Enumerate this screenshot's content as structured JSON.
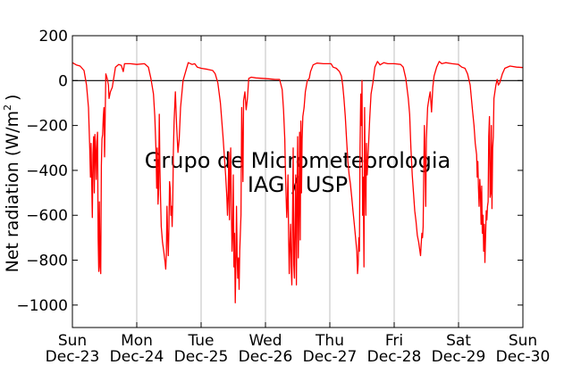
{
  "chart_data": {
    "type": "line",
    "ylabel": "Net radiation (W/m",
    "ylabel_sup": "2",
    "ylabel_close": ")",
    "ylim": [
      -1100,
      200
    ],
    "yticks": [
      200,
      0,
      -200,
      -400,
      -600,
      -800,
      -1000
    ],
    "ytick_labels": [
      "200",
      "0",
      "−200",
      "−400",
      "−600",
      "−800",
      "−1000"
    ],
    "xlim": [
      0,
      7
    ],
    "xticks": [
      {
        "x": 0,
        "day": "Sun",
        "date": "Dec-23"
      },
      {
        "x": 1,
        "day": "Mon",
        "date": "Dec-24"
      },
      {
        "x": 2,
        "day": "Tue",
        "date": "Dec-25"
      },
      {
        "x": 3,
        "day": "Wed",
        "date": "Dec-26"
      },
      {
        "x": 4,
        "day": "Thu",
        "date": "Dec-27"
      },
      {
        "x": 5,
        "day": "Fri",
        "date": "Dec-28"
      },
      {
        "x": 6,
        "day": "Sat",
        "date": "Dec-29"
      },
      {
        "x": 7,
        "day": "Sun",
        "date": "Dec-30"
      }
    ],
    "grid": "vertical",
    "reference_line": 0,
    "watermark": [
      "Grupo de Micrometeorologia",
      "IAG / USP"
    ],
    "colors": {
      "series": "#ff0000",
      "grid": "#b0b0b0",
      "watermark": "#c8c8c8"
    },
    "series": [
      {
        "values": [
          [
            0.0,
            80
          ],
          [
            0.06,
            70
          ],
          [
            0.12,
            65
          ],
          [
            0.18,
            45
          ],
          [
            0.22,
            -20
          ],
          [
            0.25,
            -120
          ],
          [
            0.27,
            -300
          ],
          [
            0.28,
            -430
          ],
          [
            0.29,
            -280
          ],
          [
            0.3,
            -450
          ],
          [
            0.31,
            -610
          ],
          [
            0.32,
            -330
          ],
          [
            0.33,
            -250
          ],
          [
            0.34,
            -500
          ],
          [
            0.35,
            -240
          ],
          [
            0.36,
            -310
          ],
          [
            0.37,
            -440
          ],
          [
            0.38,
            -270
          ],
          [
            0.39,
            -230
          ],
          [
            0.4,
            -700
          ],
          [
            0.41,
            -850
          ],
          [
            0.42,
            -540
          ],
          [
            0.43,
            -830
          ],
          [
            0.44,
            -860
          ],
          [
            0.45,
            -380
          ],
          [
            0.46,
            -260
          ],
          [
            0.47,
            -240
          ],
          [
            0.48,
            -160
          ],
          [
            0.49,
            -120
          ],
          [
            0.5,
            -340
          ],
          [
            0.52,
            30
          ],
          [
            0.54,
            10
          ],
          [
            0.56,
            -20
          ],
          [
            0.57,
            -80
          ],
          [
            0.59,
            -50
          ],
          [
            0.62,
            -30
          ],
          [
            0.67,
            60
          ],
          [
            0.72,
            72
          ],
          [
            0.76,
            68
          ],
          [
            0.79,
            40
          ],
          [
            0.81,
            75
          ],
          [
            0.9,
            75
          ],
          [
            1.0,
            72
          ],
          [
            1.12,
            75
          ],
          [
            1.18,
            60
          ],
          [
            1.22,
            10
          ],
          [
            1.26,
            -60
          ],
          [
            1.28,
            -160
          ],
          [
            1.3,
            -320
          ],
          [
            1.31,
            -480
          ],
          [
            1.32,
            -300
          ],
          [
            1.33,
            -550
          ],
          [
            1.34,
            -480
          ],
          [
            1.35,
            -150
          ],
          [
            1.36,
            -390
          ],
          [
            1.37,
            -520
          ],
          [
            1.38,
            -650
          ],
          [
            1.4,
            -720
          ],
          [
            1.42,
            -760
          ],
          [
            1.44,
            -810
          ],
          [
            1.45,
            -840
          ],
          [
            1.46,
            -780
          ],
          [
            1.47,
            -560
          ],
          [
            1.48,
            -700
          ],
          [
            1.49,
            -780
          ],
          [
            1.5,
            -650
          ],
          [
            1.51,
            -450
          ],
          [
            1.52,
            -480
          ],
          [
            1.53,
            -600
          ],
          [
            1.54,
            -560
          ],
          [
            1.55,
            -650
          ],
          [
            1.56,
            -530
          ],
          [
            1.57,
            -310
          ],
          [
            1.58,
            -180
          ],
          [
            1.6,
            -50
          ],
          [
            1.62,
            -200
          ],
          [
            1.64,
            -320
          ],
          [
            1.66,
            -260
          ],
          [
            1.68,
            -120
          ],
          [
            1.72,
            0
          ],
          [
            1.76,
            40
          ],
          [
            1.8,
            80
          ],
          [
            1.86,
            72
          ],
          [
            1.9,
            75
          ],
          [
            1.94,
            60
          ],
          [
            2.0,
            55
          ],
          [
            2.1,
            50
          ],
          [
            2.18,
            45
          ],
          [
            2.22,
            30
          ],
          [
            2.26,
            -10
          ],
          [
            2.3,
            -100
          ],
          [
            2.34,
            -250
          ],
          [
            2.38,
            -420
          ],
          [
            2.4,
            -520
          ],
          [
            2.41,
            -600
          ],
          [
            2.42,
            -520
          ],
          [
            2.43,
            -320
          ],
          [
            2.44,
            -620
          ],
          [
            2.45,
            -400
          ],
          [
            2.46,
            -300
          ],
          [
            2.47,
            -560
          ],
          [
            2.48,
            -760
          ],
          [
            2.49,
            -680
          ],
          [
            2.5,
            -420
          ],
          [
            2.51,
            -830
          ],
          [
            2.52,
            -680
          ],
          [
            2.53,
            -990
          ],
          [
            2.54,
            -820
          ],
          [
            2.55,
            -560
          ],
          [
            2.56,
            -780
          ],
          [
            2.57,
            -880
          ],
          [
            2.58,
            -790
          ],
          [
            2.59,
            -930
          ],
          [
            2.6,
            -760
          ],
          [
            2.62,
            -600
          ],
          [
            2.63,
            -120
          ],
          [
            2.65,
            -450
          ],
          [
            2.66,
            -90
          ],
          [
            2.68,
            -50
          ],
          [
            2.7,
            -130
          ],
          [
            2.72,
            -80
          ],
          [
            2.74,
            10
          ],
          [
            2.78,
            15
          ],
          [
            2.85,
            12
          ],
          [
            2.95,
            10
          ],
          [
            3.05,
            8
          ],
          [
            3.15,
            5
          ],
          [
            3.22,
            5
          ],
          [
            3.26,
            -40
          ],
          [
            3.28,
            -130
          ],
          [
            3.3,
            -260
          ],
          [
            3.31,
            -400
          ],
          [
            3.32,
            -500
          ],
          [
            3.33,
            -610
          ],
          [
            3.34,
            -540
          ],
          [
            3.35,
            -420
          ],
          [
            3.36,
            -700
          ],
          [
            3.37,
            -860
          ],
          [
            3.38,
            -720
          ],
          [
            3.39,
            -640
          ],
          [
            3.4,
            -830
          ],
          [
            3.41,
            -910
          ],
          [
            3.42,
            -650
          ],
          [
            3.43,
            -300
          ],
          [
            3.44,
            -820
          ],
          [
            3.45,
            -880
          ],
          [
            3.46,
            -640
          ],
          [
            3.47,
            -420
          ],
          [
            3.48,
            -910
          ],
          [
            3.49,
            -520
          ],
          [
            3.5,
            -250
          ],
          [
            3.51,
            -790
          ],
          [
            3.52,
            -600
          ],
          [
            3.53,
            -230
          ],
          [
            3.54,
            -710
          ],
          [
            3.55,
            -180
          ],
          [
            3.56,
            -500
          ],
          [
            3.57,
            -260
          ],
          [
            3.58,
            -160
          ],
          [
            3.6,
            -120
          ],
          [
            3.62,
            -50
          ],
          [
            3.65,
            0
          ],
          [
            3.68,
            10
          ],
          [
            3.7,
            40
          ],
          [
            3.74,
            70
          ],
          [
            3.8,
            78
          ],
          [
            3.9,
            75
          ],
          [
            3.98,
            75
          ],
          [
            4.02,
            75
          ],
          [
            4.05,
            60
          ],
          [
            4.1,
            55
          ],
          [
            4.15,
            40
          ],
          [
            4.18,
            20
          ],
          [
            4.2,
            -20
          ],
          [
            4.22,
            -80
          ],
          [
            4.24,
            -160
          ],
          [
            4.26,
            -260
          ],
          [
            4.28,
            -360
          ],
          [
            4.3,
            -420
          ],
          [
            4.32,
            -460
          ],
          [
            4.34,
            -520
          ],
          [
            4.36,
            -580
          ],
          [
            4.38,
            -640
          ],
          [
            4.4,
            -700
          ],
          [
            4.42,
            -760
          ],
          [
            4.43,
            -860
          ],
          [
            4.44,
            -820
          ],
          [
            4.45,
            -700
          ],
          [
            4.46,
            -760
          ],
          [
            4.47,
            -300
          ],
          [
            4.48,
            -60
          ],
          [
            4.49,
            -200
          ],
          [
            4.5,
            0
          ],
          [
            4.51,
            -600
          ],
          [
            4.52,
            -430
          ],
          [
            4.53,
            -830
          ],
          [
            4.54,
            -120
          ],
          [
            4.55,
            -430
          ],
          [
            4.56,
            -600
          ],
          [
            4.57,
            -280
          ],
          [
            4.58,
            -420
          ],
          [
            4.6,
            -300
          ],
          [
            4.62,
            -170
          ],
          [
            4.64,
            -60
          ],
          [
            4.67,
            -10
          ],
          [
            4.7,
            60
          ],
          [
            4.74,
            85
          ],
          [
            4.78,
            70
          ],
          [
            4.84,
            80
          ],
          [
            4.9,
            75
          ],
          [
            5.0,
            75
          ],
          [
            5.1,
            72
          ],
          [
            5.14,
            60
          ],
          [
            5.18,
            10
          ],
          [
            5.22,
            -80
          ],
          [
            5.24,
            -150
          ],
          [
            5.26,
            -300
          ],
          [
            5.28,
            -420
          ],
          [
            5.3,
            -500
          ],
          [
            5.32,
            -580
          ],
          [
            5.34,
            -630
          ],
          [
            5.36,
            -690
          ],
          [
            5.38,
            -720
          ],
          [
            5.4,
            -760
          ],
          [
            5.41,
            -780
          ],
          [
            5.42,
            -730
          ],
          [
            5.43,
            -680
          ],
          [
            5.44,
            -700
          ],
          [
            5.45,
            -650
          ],
          [
            5.46,
            -400
          ],
          [
            5.47,
            -200
          ],
          [
            5.48,
            -380
          ],
          [
            5.49,
            -560
          ],
          [
            5.5,
            -260
          ],
          [
            5.52,
            -120
          ],
          [
            5.54,
            -80
          ],
          [
            5.56,
            -50
          ],
          [
            5.58,
            -140
          ],
          [
            5.6,
            -30
          ],
          [
            5.62,
            20
          ],
          [
            5.66,
            60
          ],
          [
            5.7,
            85
          ],
          [
            5.74,
            75
          ],
          [
            5.8,
            80
          ],
          [
            5.9,
            75
          ],
          [
            6.0,
            72
          ],
          [
            6.05,
            60
          ],
          [
            6.1,
            55
          ],
          [
            6.14,
            30
          ],
          [
            6.18,
            -20
          ],
          [
            6.2,
            -80
          ],
          [
            6.22,
            -140
          ],
          [
            6.24,
            -200
          ],
          [
            6.26,
            -280
          ],
          [
            6.28,
            -330
          ],
          [
            6.29,
            -430
          ],
          [
            6.3,
            -360
          ],
          [
            6.31,
            -480
          ],
          [
            6.32,
            -560
          ],
          [
            6.33,
            -440
          ],
          [
            6.34,
            -500
          ],
          [
            6.35,
            -640
          ],
          [
            6.36,
            -470
          ],
          [
            6.37,
            -680
          ],
          [
            6.38,
            -600
          ],
          [
            6.39,
            -760
          ],
          [
            6.4,
            -640
          ],
          [
            6.41,
            -810
          ],
          [
            6.42,
            -700
          ],
          [
            6.43,
            -580
          ],
          [
            6.44,
            -620
          ],
          [
            6.45,
            -560
          ],
          [
            6.46,
            -540
          ],
          [
            6.47,
            -250
          ],
          [
            6.48,
            -160
          ],
          [
            6.49,
            -520
          ],
          [
            6.5,
            -500
          ],
          [
            6.51,
            -200
          ],
          [
            6.52,
            -570
          ],
          [
            6.53,
            -300
          ],
          [
            6.54,
            -250
          ],
          [
            6.55,
            -80
          ],
          [
            6.58,
            -20
          ],
          [
            6.6,
            5
          ],
          [
            6.62,
            -20
          ],
          [
            6.64,
            -10
          ],
          [
            6.68,
            30
          ],
          [
            6.72,
            55
          ],
          [
            6.8,
            65
          ],
          [
            6.9,
            60
          ],
          [
            7.0,
            58
          ]
        ]
      }
    ]
  }
}
